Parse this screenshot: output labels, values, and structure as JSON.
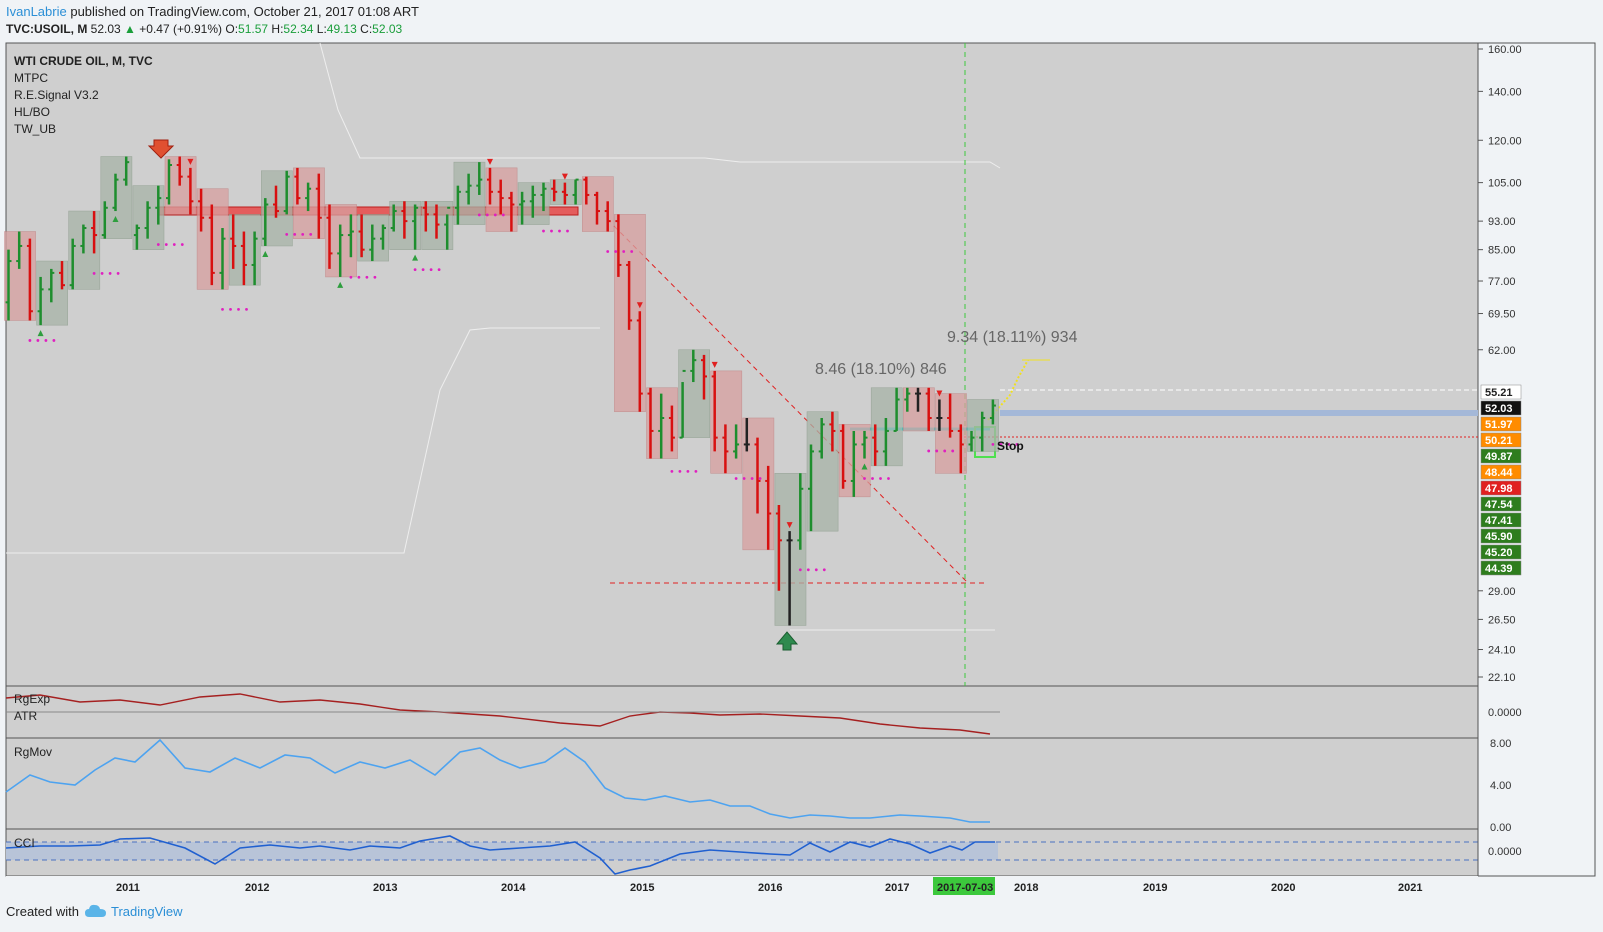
{
  "header": {
    "publisher": "IvanLabrie",
    "published_text": "published on TradingView.com, October 21, 2017 01:08 ART",
    "symbol": "TVC:USOIL, M",
    "last": "52.03",
    "change_arrow": "▲",
    "change": "+0.47 (+0.91%)",
    "o_label": "O:",
    "o": "51.57",
    "h_label": "H:",
    "h": "52.34",
    "l_label": "L:",
    "l": "49.13",
    "c_label": "C:",
    "c": "52.03"
  },
  "legend": [
    "WTI CRUDE OIL, M, TVC",
    "MTPC",
    "R.E.Signal V3.2",
    "HL/BO",
    "TW_UB"
  ],
  "annotations": {
    "projection1": "8.46 (18.10%) 846",
    "projection2": "9.34 (18.11%) 934",
    "stop": "Stop"
  },
  "footer": {
    "created_with": "Created with",
    "brand": "TradingView"
  },
  "colors": {
    "up": "#1e8e2e",
    "down": "#d81010",
    "neutral": "#222222",
    "accent": "#2b8fd6",
    "blue_line": "#4da3f0",
    "atr_line": "#b33030"
  },
  "chart_data": [
    {
      "type": "ohlc",
      "title": "WTI CRUDE OIL, M, TVC",
      "y_ticks": [
        "160.00",
        "140.00",
        "120.00",
        "105.00",
        "93.00",
        "85.00",
        "77.00",
        "69.50",
        "62.00",
        "55.21",
        "52.03",
        "51.97",
        "50.21",
        "49.87",
        "48.44",
        "47.98",
        "47.54",
        "47.41",
        "45.90",
        "45.20",
        "44.39",
        "29.00",
        "26.50",
        "24.10",
        "22.10"
      ],
      "price_labels": [
        {
          "text": "55.21",
          "color": "#ffffff",
          "fg": "#222222"
        },
        {
          "text": "52.03",
          "color": "#111111",
          "fg": "#ffffff"
        },
        {
          "text": "51.97",
          "color": "#ff8c00",
          "fg": "#ffffff"
        },
        {
          "text": "50.21",
          "color": "#ff8c00",
          "fg": "#ffffff"
        },
        {
          "text": "49.87",
          "color": "#2e7d1e",
          "fg": "#ffffff"
        },
        {
          "text": "48.44",
          "color": "#ff8c00",
          "fg": "#ffffff"
        },
        {
          "text": "47.98",
          "color": "#e02020",
          "fg": "#ffffff"
        },
        {
          "text": "47.54",
          "color": "#2e7d1e",
          "fg": "#ffffff"
        },
        {
          "text": "47.41",
          "color": "#2e7d1e",
          "fg": "#ffffff"
        },
        {
          "text": "45.90",
          "color": "#2e7d1e",
          "fg": "#ffffff"
        },
        {
          "text": "45.20",
          "color": "#2e7d1e",
          "fg": "#ffffff"
        },
        {
          "text": "44.39",
          "color": "#2e7d1e",
          "fg": "#ffffff"
        }
      ],
      "x_ticks": [
        "2011",
        "2012",
        "2013",
        "2014",
        "2015",
        "2016",
        "2017",
        "2017-07-03",
        "2018",
        "2019",
        "2020",
        "2021"
      ],
      "x_highlight": "2017-07-03",
      "series": [
        {
          "values": [
            [
              72,
              85,
              68,
              82
            ],
            [
              82,
              90,
              80,
              86
            ],
            [
              86,
              88,
              68,
              70
            ],
            [
              70,
              78,
              67,
              75
            ],
            [
              75,
              80,
              72,
              79
            ],
            [
              79,
              82,
              75,
              76
            ],
            [
              76,
              88,
              75,
              86
            ],
            [
              86,
              92,
              84,
              91
            ],
            [
              91,
              96,
              84,
              89
            ],
            [
              89,
              99,
              88,
              97
            ],
            [
              97,
              108,
              96,
              106
            ],
            [
              106,
              114,
              104,
              112
            ],
            [
              89,
              92,
              85,
              91
            ],
            [
              91,
              99,
              88,
              97
            ],
            [
              97,
              104,
              92,
              100
            ],
            [
              100,
              113,
              98,
              111
            ],
            [
              111,
              114,
              104,
              107
            ],
            [
              107,
              110,
              95,
              99
            ],
            [
              99,
              103,
              90,
              94
            ],
            [
              94,
              98,
              76,
              79
            ],
            [
              79,
              91,
              75,
              88
            ],
            [
              88,
              95,
              80,
              86
            ],
            [
              86,
              90,
              76,
              81
            ],
            [
              81,
              90,
              76,
              88
            ],
            [
              88,
              100,
              86,
              98
            ],
            [
              98,
              104,
              94,
              96
            ],
            [
              96,
              109,
              95,
              107
            ],
            [
              107,
              110,
              98,
              100
            ],
            [
              100,
              105,
              96,
              103
            ],
            [
              103,
              108,
              88,
              94
            ],
            [
              94,
              98,
              80,
              84
            ],
            [
              84,
              92,
              78,
              89
            ],
            [
              89,
              95,
              83,
              90
            ],
            [
              90,
              95,
              83,
              85
            ],
            [
              85,
              92,
              82,
              88
            ],
            [
              88,
              92,
              85,
              91
            ],
            [
              91,
              98,
              90,
              96
            ],
            [
              96,
              99,
              88,
              93
            ],
            [
              93,
              98,
              85,
              97
            ],
            [
              97,
              99,
              90,
              95
            ],
            [
              95,
              98,
              88,
              92
            ],
            [
              92,
              95,
              85,
              97
            ],
            [
              97,
              104,
              92,
              102
            ],
            [
              102,
              108,
              98,
              104
            ],
            [
              104,
              112,
              101,
              106
            ],
            [
              106,
              110,
              98,
              102
            ],
            [
              102,
              106,
              95,
              100
            ],
            [
              100,
              102,
              90,
              98
            ],
            [
              98,
              102,
              92,
              99
            ],
            [
              99,
              104,
              94,
              101
            ],
            [
              101,
              105,
              96,
              103
            ],
            [
              103,
              106,
              99,
              102
            ],
            [
              102,
              105,
              98,
              101
            ],
            [
              101,
              106,
              98,
              106
            ],
            [
              106,
              107,
              98,
              101
            ],
            [
              101,
              102,
              92,
              96
            ],
            [
              96,
              99,
              90,
              93
            ],
            [
              93,
              95,
              78,
              81
            ],
            [
              81,
              82,
              66,
              68
            ],
            [
              68,
              70,
              51,
              54
            ],
            [
              54,
              55,
              44,
              48
            ],
            [
              48,
              54,
              44,
              50
            ],
            [
              50,
              52,
              45,
              47
            ],
            [
              47,
              56,
              47,
              58
            ],
            [
              58,
              62,
              56,
              60
            ],
            [
              60,
              61,
              53,
              57
            ],
            [
              57,
              58,
              45,
              47
            ],
            [
              47,
              49,
              42,
              45
            ],
            [
              45,
              49,
              44,
              46
            ],
            [
              46,
              50,
              45,
              46
            ],
            [
              46,
              47,
              37,
              41
            ],
            [
              41,
              43,
              33,
              37
            ],
            [
              37,
              38,
              29,
              34
            ],
            [
              34,
              35,
              26,
              34
            ],
            [
              34,
              42,
              33,
              40
            ],
            [
              40,
              46,
              35,
              45
            ],
            [
              45,
              50,
              44,
              49
            ],
            [
              49,
              51,
              45,
              48
            ],
            [
              48,
              49,
              40,
              41
            ],
            [
              41,
              48,
              39,
              46
            ],
            [
              46,
              48,
              44,
              47
            ],
            [
              47,
              49,
              43,
              45
            ],
            [
              45,
              50,
              43,
              48
            ],
            [
              48,
              55,
              48,
              53
            ],
            [
              53,
              55,
              51,
              54
            ],
            [
              54,
              55,
              51,
              54
            ],
            [
              54,
              55,
              48,
              50
            ],
            [
              50,
              53,
              48,
              50
            ],
            [
              50,
              54,
              47,
              48
            ],
            [
              48,
              49,
              42,
              46
            ],
            [
              46,
              48,
              45,
              47
            ],
            [
              47,
              51,
              45,
              50
            ],
            [
              50,
              53,
              49,
              52
            ]
          ]
        }
      ]
    },
    {
      "type": "line",
      "title": "RgExp",
      "y_ticks": [
        "0.0000"
      ]
    },
    {
      "type": "line",
      "title": "ATR"
    },
    {
      "type": "line",
      "title": "RgMov",
      "y_ticks": [
        "8.00",
        "4.00",
        "0.00"
      ]
    },
    {
      "type": "line",
      "title": "CCI",
      "y_ticks": [
        "0.0000"
      ]
    }
  ]
}
